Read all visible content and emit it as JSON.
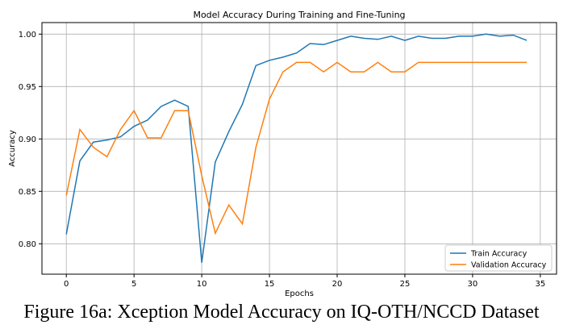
{
  "chart_data": {
    "type": "line",
    "title": "Model Accuracy During Training and Fine-Tuning",
    "xlabel": "Epochs",
    "ylabel": "Accuracy",
    "xlim": [
      -1.8,
      36.2
    ],
    "ylim": [
      0.771,
      1.011
    ],
    "xticks": [
      0,
      5,
      10,
      15,
      20,
      25,
      30,
      35
    ],
    "yticks": [
      0.8,
      0.85,
      0.9,
      0.95,
      1.0
    ],
    "grid": true,
    "legend_position": "bottom-right",
    "x": [
      0,
      1,
      2,
      3,
      4,
      5,
      6,
      7,
      8,
      9,
      10,
      11,
      12,
      13,
      14,
      15,
      16,
      17,
      18,
      19,
      20,
      21,
      22,
      23,
      24,
      25,
      26,
      27,
      28,
      29,
      30,
      31,
      32,
      33,
      34
    ],
    "series": [
      {
        "name": "Train Accuracy",
        "color": "#1f77b4",
        "values": [
          0.809,
          0.879,
          0.897,
          0.899,
          0.902,
          0.912,
          0.918,
          0.931,
          0.937,
          0.931,
          0.782,
          0.878,
          0.907,
          0.933,
          0.97,
          0.975,
          0.978,
          0.982,
          0.991,
          0.99,
          0.994,
          0.998,
          0.996,
          0.995,
          0.998,
          0.994,
          0.998,
          0.996,
          0.996,
          0.998,
          0.998,
          1.0,
          0.998,
          0.999,
          0.994
        ]
      },
      {
        "name": "Validation Accuracy",
        "color": "#ff7f0e",
        "values": [
          0.846,
          0.909,
          0.892,
          0.883,
          0.909,
          0.927,
          0.901,
          0.901,
          0.927,
          0.927,
          0.865,
          0.81,
          0.837,
          0.819,
          0.892,
          0.938,
          0.964,
          0.973,
          0.973,
          0.964,
          0.973,
          0.964,
          0.964,
          0.973,
          0.964,
          0.964,
          0.973,
          0.973,
          0.973,
          0.973,
          0.973,
          0.973,
          0.973,
          0.973,
          0.973
        ]
      }
    ]
  },
  "caption": "Figure 16a: Xception Model Accuracy on IQ-OTH/NCCD Dataset"
}
